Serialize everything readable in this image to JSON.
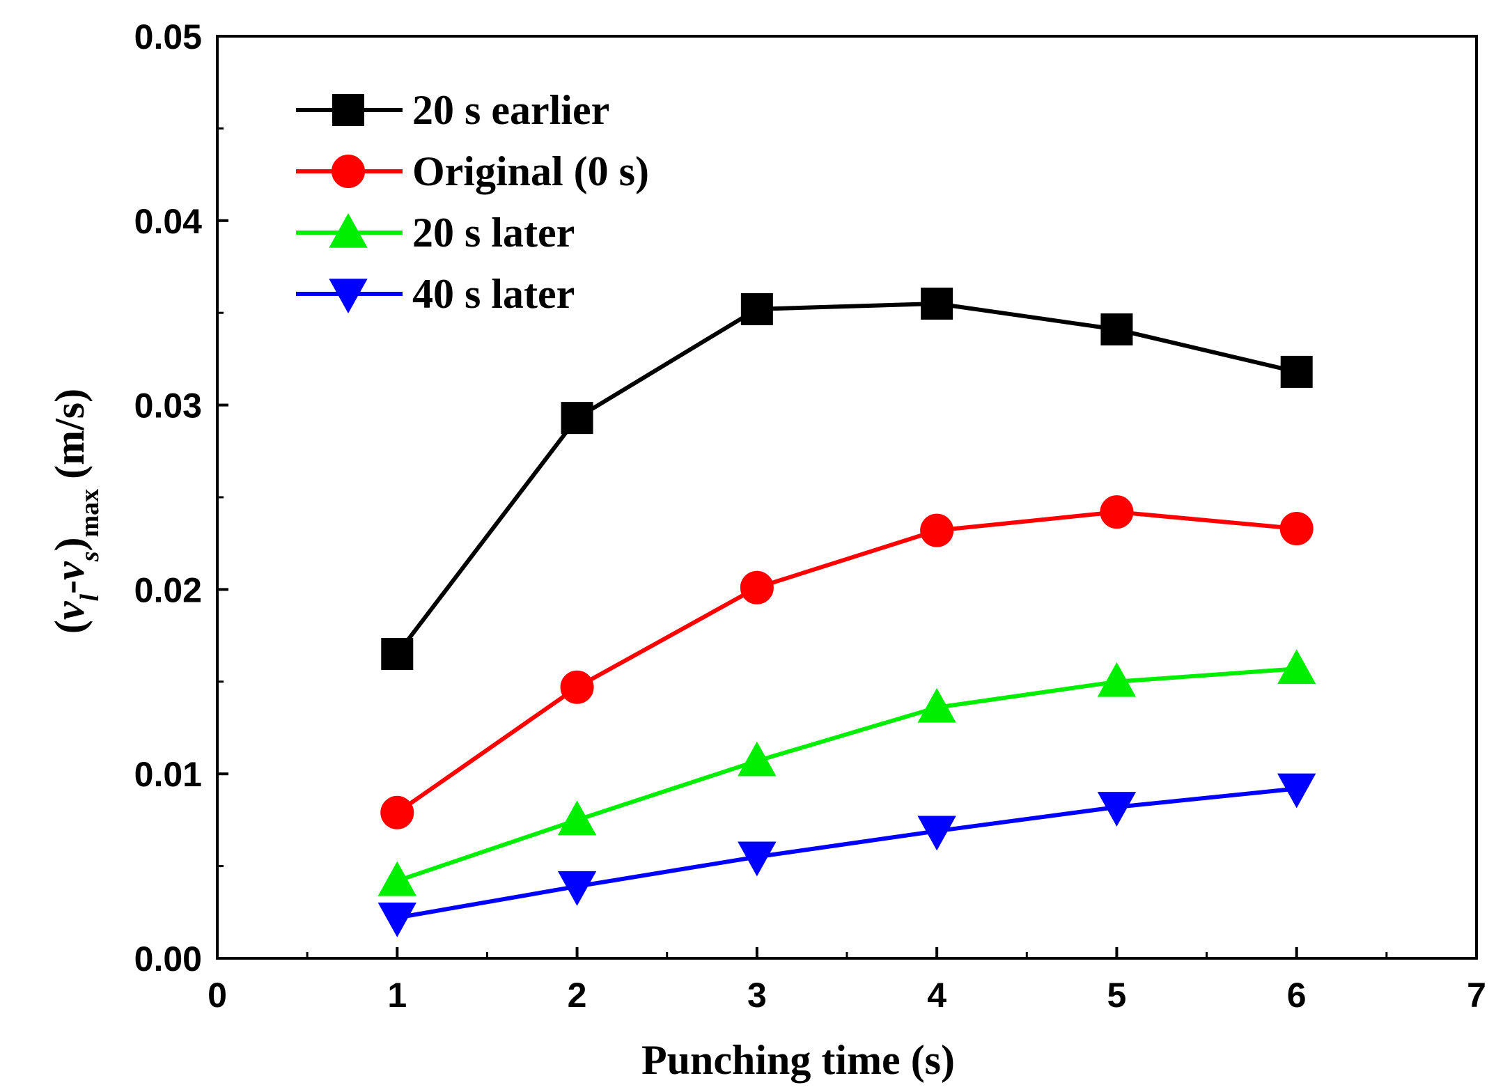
{
  "colors": {
    "background": "#ffffff",
    "axis": "#000000"
  },
  "chart_data": {
    "type": "line",
    "title": "",
    "xlabel": "Punching time (s)",
    "ylabel": {
      "open_paren": "(",
      "v1": "v",
      "sub1": "l",
      "dash": "-",
      "v2": "v",
      "sub2": "s",
      "close_paren": ")",
      "sub_max": "max",
      "unit": "(m/s)"
    },
    "xlim": [
      0,
      7
    ],
    "ylim": [
      0,
      0.05
    ],
    "xticks": [
      0,
      1,
      2,
      3,
      4,
      5,
      6,
      7
    ],
    "xtick_labels": [
      "0",
      "1",
      "2",
      "3",
      "4",
      "5",
      "6",
      "7"
    ],
    "yticks": [
      0,
      0.01,
      0.02,
      0.03,
      0.04,
      0.05
    ],
    "ytick_labels": [
      "0.00",
      "0.01",
      "0.02",
      "0.03",
      "0.04",
      "0.05"
    ],
    "grid": false,
    "legend_position": "top-left",
    "x": [
      1,
      2,
      3,
      4,
      5,
      6
    ],
    "series": [
      {
        "name": "20 s earlier",
        "color": "#000000",
        "marker": "square",
        "values": [
          0.0165,
          0.0293,
          0.0352,
          0.0355,
          0.0341,
          0.0318
        ]
      },
      {
        "name": "Original (0 s)",
        "color": "#ff0000",
        "marker": "circle",
        "values": [
          0.0079,
          0.0147,
          0.0201,
          0.0232,
          0.0242,
          0.0233
        ]
      },
      {
        "name": "20 s later",
        "color": "#00ee00",
        "marker": "triangle-up",
        "values": [
          0.0042,
          0.0075,
          0.0107,
          0.0136,
          0.015,
          0.0157
        ]
      },
      {
        "name": "40 s later",
        "color": "#0000ff",
        "marker": "triangle-down",
        "values": [
          0.0022,
          0.0039,
          0.0055,
          0.0069,
          0.0082,
          0.0092
        ]
      }
    ]
  }
}
